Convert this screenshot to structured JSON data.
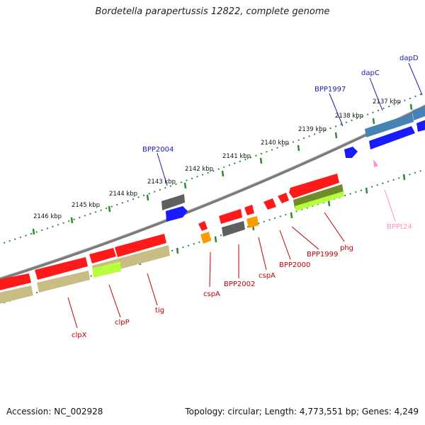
{
  "title": "Bordetella parapertussis 12822, complete genome",
  "footer": {
    "accession": "Accession: NC_002928",
    "topology": "Topology: circular; Length: 4,773,551 bp; Genes: 4,249"
  },
  "colors": {
    "red_gene": "#ff1a1a",
    "olive_gene": "#c9bd86",
    "dark_olive": "#6f8b2a",
    "lime": "#b7ff3c",
    "gray_gene": "#6e6e6e",
    "blue_gene": "#1a1aff",
    "steel_gene": "#4682b4",
    "orange_gene": "#ff9900",
    "pink": "#ff8fc8",
    "backbone": "#8a8a8a",
    "tick_green": "#2e8b2e",
    "label_blue": "#1a1ab4",
    "label_red": "#c00000"
  },
  "ticks": [
    {
      "id": "2137",
      "label": "2137 kbp"
    },
    {
      "id": "2138",
      "label": "2138 kbp"
    },
    {
      "id": "2139",
      "label": "2139 kbp"
    },
    {
      "id": "2140",
      "label": "2140 kbp"
    },
    {
      "id": "2141",
      "label": "2141 kbp"
    },
    {
      "id": "2142",
      "label": "2142 kbp"
    },
    {
      "id": "2143",
      "label": "2143 kbp"
    },
    {
      "id": "2144",
      "label": "2144 kbp"
    },
    {
      "id": "2145",
      "label": "2145 kbp"
    },
    {
      "id": "2146",
      "label": "2146 kbp"
    }
  ],
  "gene_labels": [
    {
      "id": "dapD",
      "text": "dapD",
      "color": "blue"
    },
    {
      "id": "dapC",
      "text": "dapC",
      "color": "blue"
    },
    {
      "id": "BPP1997",
      "text": "BPP1997",
      "color": "blue"
    },
    {
      "id": "BPP2004",
      "text": "BPP2004",
      "color": "blue"
    },
    {
      "id": "BPPt24",
      "text": "BPPt24",
      "color": "pink"
    },
    {
      "id": "phg",
      "text": "phg",
      "color": "red"
    },
    {
      "id": "BPP1999",
      "text": "BPP1999",
      "color": "red"
    },
    {
      "id": "BPP2000",
      "text": "BPP2000",
      "color": "red"
    },
    {
      "id": "cspA_1",
      "text": "cspA",
      "color": "red"
    },
    {
      "id": "BPP2002",
      "text": "BPP2002",
      "color": "red"
    },
    {
      "id": "cspA_2",
      "text": "cspA",
      "color": "red"
    },
    {
      "id": "tig",
      "text": "tig",
      "color": "red"
    },
    {
      "id": "clpP",
      "text": "clpP",
      "color": "red"
    },
    {
      "id": "clpX",
      "text": "clpX",
      "color": "red"
    }
  ]
}
